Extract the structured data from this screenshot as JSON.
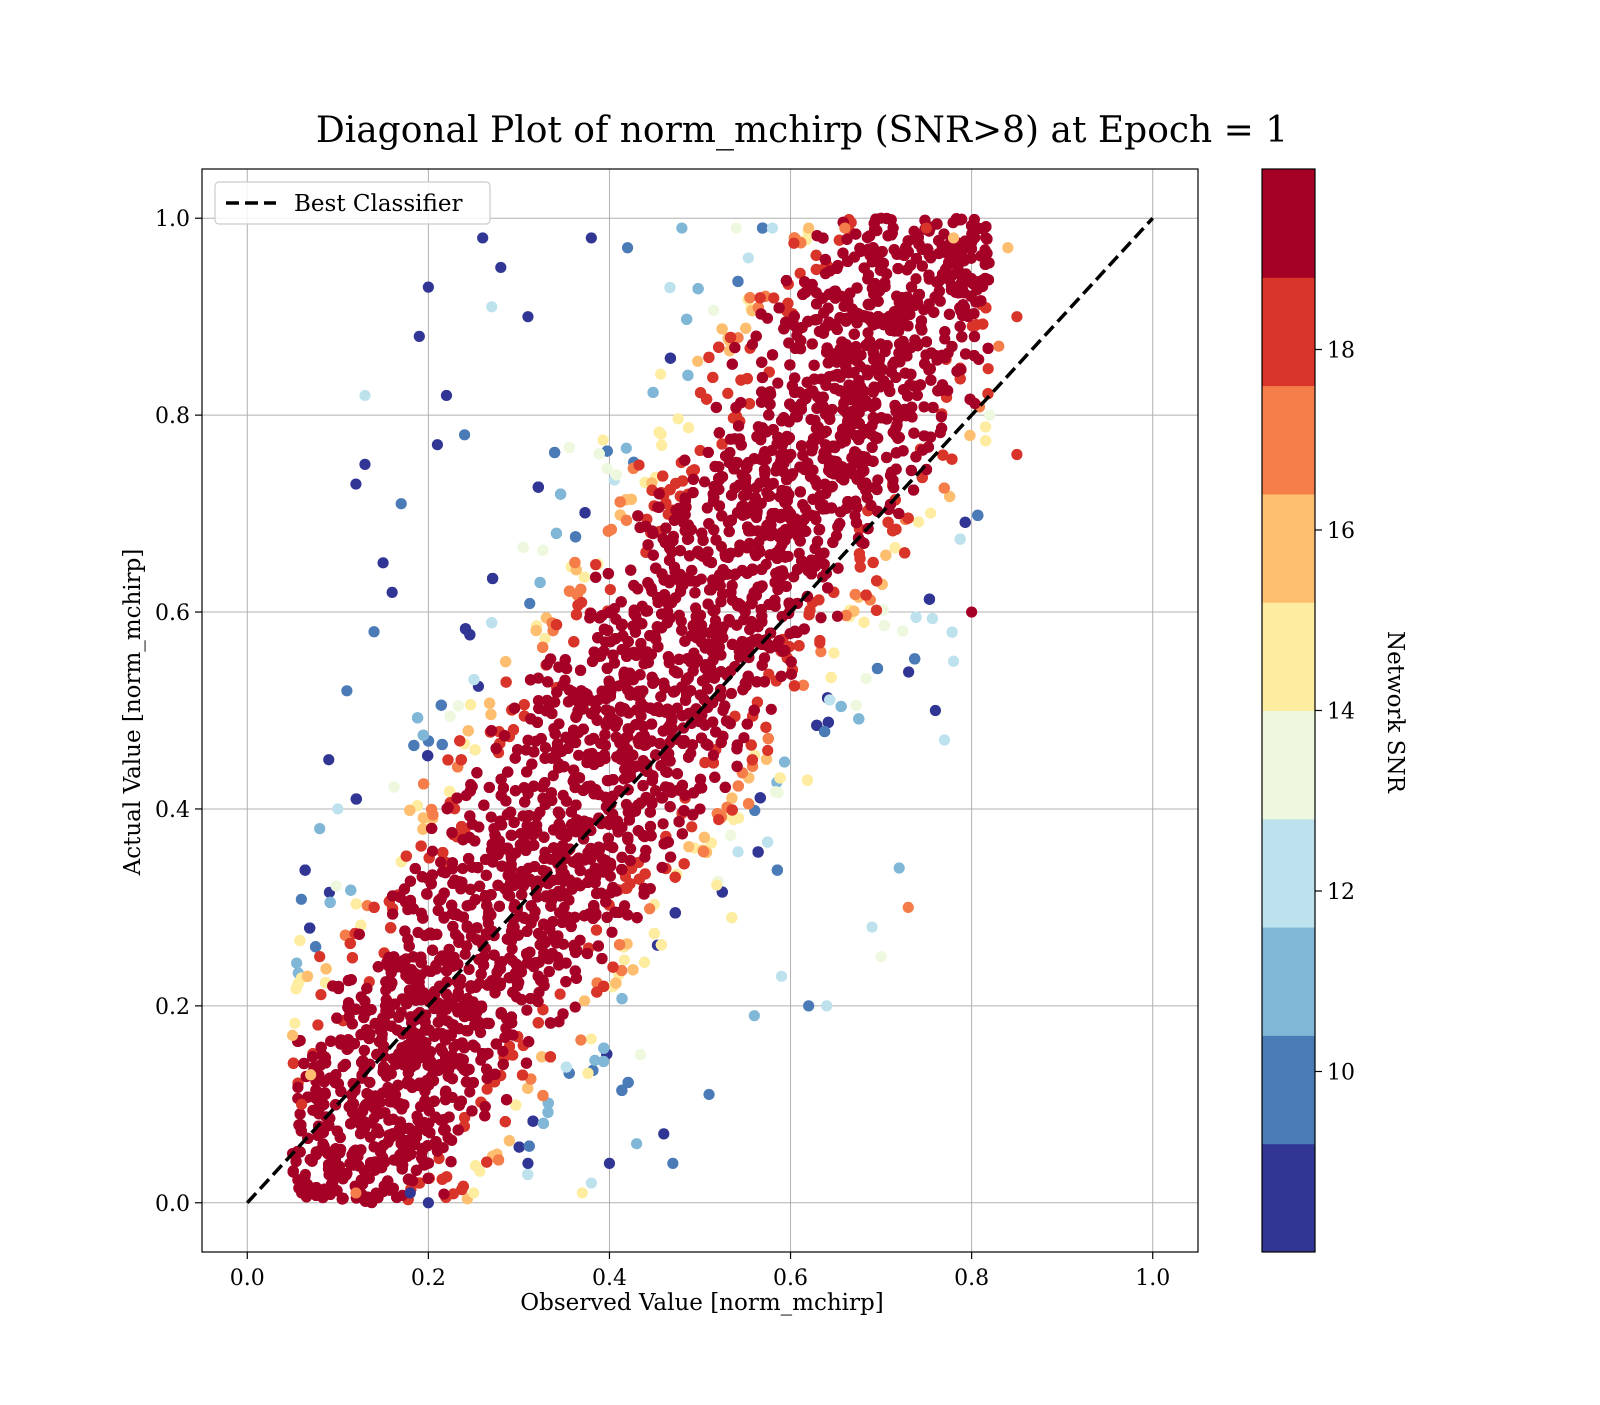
{
  "chart_data": {
    "type": "scatter",
    "title": "Diagonal Plot of norm_mchirp (SNR>8) at Epoch = 1",
    "xlabel": "Observed Value [norm_mchirp]",
    "ylabel": "Actual Value [norm_mchirp]",
    "xlim": [
      -0.05,
      1.05
    ],
    "ylim": [
      -0.05,
      1.05
    ],
    "x_ticks": [
      "0.0",
      "0.2",
      "0.4",
      "0.6",
      "0.8",
      "1.0"
    ],
    "y_ticks": [
      "0.0",
      "0.2",
      "0.4",
      "0.6",
      "0.8",
      "1.0"
    ],
    "grid": true,
    "legend": {
      "placement": "upper-left",
      "entries": [
        {
          "label": "Best Classifier",
          "style": "dashed",
          "color": "#000000"
        }
      ]
    },
    "reference_line": {
      "name": "Best Classifier",
      "x": [
        0.0,
        1.0
      ],
      "y": [
        0.0,
        1.0
      ]
    },
    "colorbar": {
      "label": "Network SNR",
      "range": [
        8,
        20
      ],
      "ticks": [
        "10",
        "12",
        "14",
        "16",
        "18"
      ],
      "tick_values": [
        10,
        12,
        14,
        16,
        18
      ],
      "bands": [
        {
          "from": 8,
          "to": 9.2,
          "color": "#313695"
        },
        {
          "from": 9.2,
          "to": 10.4,
          "color": "#4a7bb7"
        },
        {
          "from": 10.4,
          "to": 11.6,
          "color": "#80b6d6"
        },
        {
          "from": 11.6,
          "to": 12.8,
          "color": "#bde2ee"
        },
        {
          "from": 12.8,
          "to": 14.0,
          "color": "#eef8df"
        },
        {
          "from": 14.0,
          "to": 15.2,
          "color": "#feeda1"
        },
        {
          "from": 15.2,
          "to": 16.4,
          "color": "#fdbf6f"
        },
        {
          "from": 16.4,
          "to": 17.6,
          "color": "#f57d4a"
        },
        {
          "from": 17.6,
          "to": 18.8,
          "color": "#d93429"
        },
        {
          "from": 18.8,
          "to": 20,
          "color": "#a50026"
        }
      ]
    },
    "point_cloud": {
      "description_kind": "dense diagonal band",
      "points": [
        [
          0.13,
          0.82,
          12.5
        ],
        [
          0.2,
          0.93,
          8.5
        ],
        [
          0.26,
          0.98,
          8.4
        ],
        [
          0.19,
          0.88,
          8.6
        ],
        [
          0.22,
          0.82,
          8.3
        ],
        [
          0.12,
          0.73,
          8.5
        ],
        [
          0.13,
          0.75,
          8.4
        ],
        [
          0.27,
          0.91,
          12.3
        ],
        [
          0.28,
          0.95,
          8.7
        ],
        [
          0.31,
          0.9,
          8.5
        ],
        [
          0.15,
          0.65,
          9.0
        ],
        [
          0.17,
          0.71,
          10.0
        ],
        [
          0.21,
          0.77,
          8.5
        ],
        [
          0.24,
          0.78,
          9.5
        ],
        [
          0.09,
          0.45,
          8.6
        ],
        [
          0.11,
          0.52,
          9.2
        ],
        [
          0.08,
          0.38,
          10.5
        ],
        [
          0.1,
          0.4,
          12.0
        ],
        [
          0.16,
          0.62,
          8.8
        ],
        [
          0.14,
          0.58,
          9.4
        ],
        [
          0.38,
          0.98,
          8.5
        ],
        [
          0.42,
          0.97,
          10.2
        ],
        [
          0.48,
          0.99,
          11.0
        ],
        [
          0.54,
          0.99,
          13.0
        ],
        [
          0.58,
          0.99,
          12.4
        ],
        [
          0.62,
          0.99,
          16.0
        ],
        [
          0.66,
          0.99,
          17.0
        ],
        [
          0.7,
          1.0,
          19.0
        ],
        [
          0.75,
          0.99,
          18.5
        ],
        [
          0.78,
          0.98,
          16.2
        ],
        [
          0.84,
          0.97,
          15.5
        ],
        [
          0.85,
          0.9,
          17.8
        ],
        [
          0.85,
          0.76,
          18.2
        ],
        [
          0.83,
          0.87,
          17.0
        ],
        [
          0.8,
          0.6,
          19.5
        ],
        [
          0.82,
          0.8,
          13.5
        ],
        [
          0.78,
          0.55,
          12.0
        ],
        [
          0.76,
          0.5,
          9.0
        ],
        [
          0.77,
          0.47,
          12.5
        ],
        [
          0.72,
          0.34,
          10.5
        ],
        [
          0.73,
          0.3,
          16.5
        ],
        [
          0.7,
          0.25,
          13.8
        ],
        [
          0.69,
          0.28,
          12.2
        ],
        [
          0.64,
          0.2,
          11.8
        ],
        [
          0.62,
          0.2,
          9.6
        ],
        [
          0.59,
          0.23,
          12.0
        ],
        [
          0.56,
          0.19,
          11.4
        ],
        [
          0.51,
          0.11,
          10.0
        ],
        [
          0.47,
          0.04,
          9.2
        ],
        [
          0.46,
          0.07,
          8.7
        ],
        [
          0.43,
          0.06,
          10.4
        ],
        [
          0.4,
          0.04,
          8.8
        ],
        [
          0.38,
          0.02,
          11.6
        ],
        [
          0.37,
          0.01,
          14.5
        ],
        [
          0.31,
          0.04,
          9.0
        ],
        [
          0.25,
          0.01,
          14.8
        ],
        [
          0.2,
          0.0,
          8.4
        ],
        [
          0.18,
          0.01,
          8.9
        ],
        [
          0.12,
          0.01,
          17.2
        ],
        [
          0.06,
          0.01,
          19.4
        ],
        [
          0.05,
          0.05,
          19.2
        ],
        [
          0.06,
          0.1,
          18.6
        ],
        [
          0.07,
          0.13,
          15.5
        ],
        [
          0.05,
          0.17,
          16.2
        ],
        [
          0.08,
          0.25,
          18.0
        ],
        [
          0.35,
          0.3,
          19.5
        ],
        [
          0.45,
          0.5,
          19.5
        ],
        [
          0.55,
          0.6,
          19.4
        ],
        [
          0.5,
          0.4,
          19.6
        ],
        [
          0.6,
          0.7,
          19.5
        ]
      ]
    }
  }
}
